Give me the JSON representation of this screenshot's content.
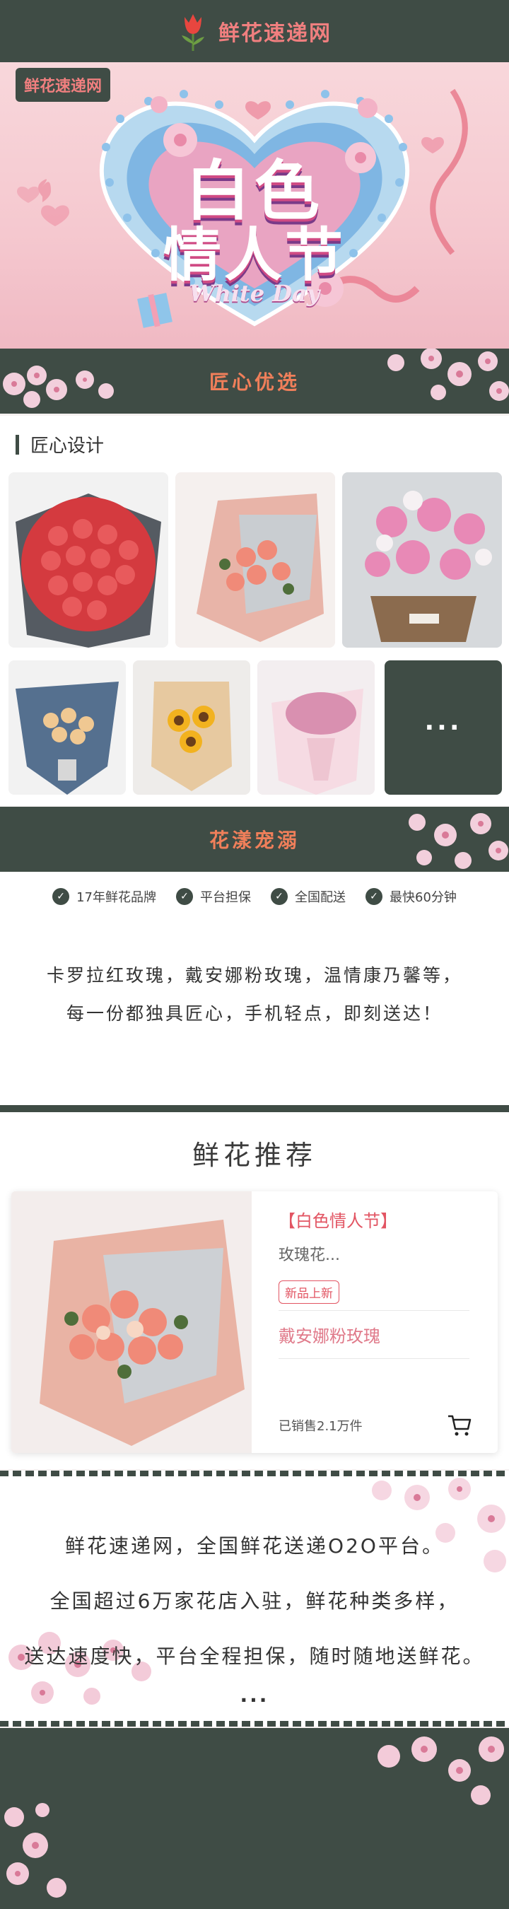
{
  "header": {
    "title": "鲜花速递网",
    "logo_icon": "tulip-logo-icon"
  },
  "banner": {
    "tag": "鲜花速递网",
    "headline_1": "白色",
    "headline_2": "情人节",
    "sub": "White Day"
  },
  "section1": {
    "title": "匠心优选"
  },
  "design": {
    "subhead": "匠心设计",
    "more_label": "···",
    "items": [
      "red-roses-bouquet",
      "peach-roses-bouquet",
      "pink-flower-basket",
      "champagne-roses-bouquet",
      "sunflower-bouquet",
      "gypsophila-bouquet"
    ]
  },
  "section2": {
    "title": "花漾宠溺"
  },
  "features": {
    "badges": [
      "17年鲜花品牌",
      "平台担保",
      "全国配送",
      "最快60分钟"
    ],
    "desc_1": "卡罗拉红玫瑰，戴安娜粉玫瑰，温情康乃馨等，",
    "desc_2": "每一份都独具匠心，手机轻点，即刻送达！"
  },
  "recommend": {
    "title": "鲜花推荐",
    "product": {
      "tag_title": "【白色情人节】",
      "subtitle": "玫瑰花...",
      "badge": "新品上新",
      "name": "戴安娜粉玫瑰",
      "sold": "已销售2.1万件"
    }
  },
  "about": {
    "line_1": "鲜花速递网，全国鲜花送递O2O平台。",
    "line_2": "全国超过6万家花店入驻，鲜花种类多样，",
    "line_3": "送达速度快，平台全程担保，随时随地送鲜花。",
    "dots": "···"
  },
  "colors": {
    "dark": "#3f4c45",
    "accent": "#f07f5a",
    "pink": "#e25563"
  }
}
